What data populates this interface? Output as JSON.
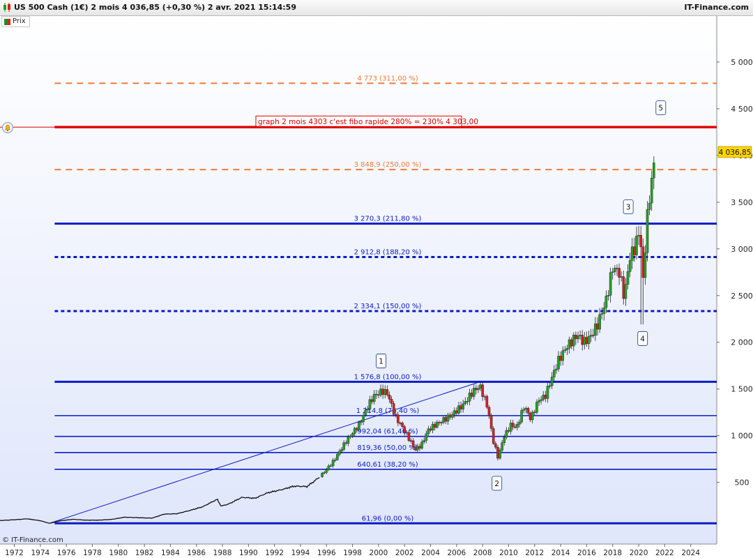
{
  "header": {
    "title": "US 500 Cash (1€) 2 mois 4 036,85 (+0,30 %) 2 avr. 2021 15:14:59",
    "brand": "IT-Finance.com"
  },
  "legend": {
    "label": "Prix"
  },
  "footer": {
    "copyright": "© IT-Finance.com"
  },
  "colors": {
    "up": "#22a022",
    "down": "#d42020",
    "fibo_blue": "#0b1cc4",
    "fibo_orange": "#f07a3a",
    "annotation_red": "#e00000",
    "bg_gradient": "#dfe6fb"
  },
  "icons": {
    "title": "candlestick-icon",
    "alert": "bell-icon"
  },
  "chart_data": {
    "type": "candlestick",
    "x_ticks": [
      "1972",
      "1974",
      "1976",
      "1978",
      "1980",
      "1982",
      "1984",
      "1986",
      "1988",
      "1990",
      "1992",
      "1994",
      "1996",
      "1998",
      "2000",
      "2002",
      "2004",
      "2006",
      "2008",
      "2010",
      "2012",
      "2014",
      "2016",
      "2018",
      "2020",
      "2022",
      "2024"
    ],
    "y_ticks": [
      "500",
      "1 000",
      "1 500",
      "2 000",
      "2 500",
      "3 000",
      "3 500",
      "4 000",
      "4 500",
      "5 000"
    ],
    "y_tick_values": [
      500,
      1000,
      1500,
      2000,
      2500,
      3000,
      3500,
      4000,
      4500,
      5000
    ],
    "xlim": [
      1970.9,
      2026.0
    ],
    "ylim": [
      -160,
      5500
    ],
    "last_price": 4036.85,
    "last_price_label": "4 036,85",
    "price_series": [
      [
        1970.9,
        92
      ],
      [
        1972.0,
        100
      ],
      [
        1973.0,
        110
      ],
      [
        1974.0,
        90
      ],
      [
        1974.7,
        62
      ],
      [
        1975.5,
        88
      ],
      [
        1976.5,
        105
      ],
      [
        1977.5,
        96
      ],
      [
        1978.5,
        96
      ],
      [
        1979.5,
        104
      ],
      [
        1980.5,
        128
      ],
      [
        1981.5,
        122
      ],
      [
        1982.6,
        118
      ],
      [
        1983.5,
        160
      ],
      [
        1984.5,
        165
      ],
      [
        1985.5,
        200
      ],
      [
        1986.5,
        240
      ],
      [
        1987.6,
        320
      ],
      [
        1987.9,
        245
      ],
      [
        1988.5,
        270
      ],
      [
        1989.5,
        340
      ],
      [
        1990.5,
        330
      ],
      [
        1991.5,
        390
      ],
      [
        1992.5,
        420
      ],
      [
        1993.5,
        460
      ],
      [
        1994.5,
        455
      ],
      [
        1995.5,
        560
      ],
      [
        1996.5,
        720
      ],
      [
        1997.5,
        940
      ],
      [
        1998.5,
        1120
      ],
      [
        1999.2,
        1320
      ],
      [
        1999.6,
        1420
      ],
      [
        2000.3,
        1480
      ],
      [
        2000.7,
        1450
      ],
      [
        2001.3,
        1200
      ],
      [
        2001.8,
        1100
      ],
      [
        2002.5,
        930
      ],
      [
        2002.8,
        850
      ],
      [
        2003.3,
        900
      ],
      [
        2003.8,
        1060
      ],
      [
        2004.5,
        1130
      ],
      [
        2005.5,
        1210
      ],
      [
        2006.5,
        1330
      ],
      [
        2007.3,
        1480
      ],
      [
        2007.8,
        1530
      ],
      [
        2008.4,
        1300
      ],
      [
        2008.8,
        950
      ],
      [
        2009.2,
        760
      ],
      [
        2009.6,
        980
      ],
      [
        2010.2,
        1120
      ],
      [
        2010.6,
        1080
      ],
      [
        2011.2,
        1320
      ],
      [
        2011.7,
        1180
      ],
      [
        2012.3,
        1380
      ],
      [
        2012.8,
        1420
      ],
      [
        2013.3,
        1610
      ],
      [
        2013.8,
        1800
      ],
      [
        2014.5,
        1960
      ],
      [
        2015.3,
        2080
      ],
      [
        2015.8,
        2000
      ],
      [
        2016.3,
        2060
      ],
      [
        2016.8,
        2180
      ],
      [
        2017.5,
        2450
      ],
      [
        2018.0,
        2800
      ],
      [
        2018.5,
        2750
      ],
      [
        2018.9,
        2480
      ],
      [
        2019.3,
        2900
      ],
      [
        2019.8,
        3050
      ],
      [
        2020.1,
        3250
      ],
      [
        2020.3,
        2580
      ],
      [
        2020.6,
        3250
      ],
      [
        2020.9,
        3650
      ],
      [
        2021.1,
        3800
      ],
      [
        2021.25,
        4036.85
      ]
    ],
    "fibonacci_levels": [
      {
        "label": "4 773 (311,00 %)",
        "value": 4773,
        "style": "dashed",
        "color": "orange"
      },
      {
        "label": "3 848,9 (250,00 %)",
        "value": 3848.9,
        "style": "dashed",
        "color": "orange"
      },
      {
        "label": "3 270,3 (211,80 %)",
        "value": 3270.3,
        "style": "solid",
        "color": "blue"
      },
      {
        "label": "2 912,8 (188,20 %)",
        "value": 2912.8,
        "style": "dotted",
        "color": "blue"
      },
      {
        "label": "2 334,1 (150,00 %)",
        "value": 2334.1,
        "style": "dotted",
        "color": "blue"
      },
      {
        "label": "1 576,8 (100,00 %)",
        "value": 1576.8,
        "style": "solid",
        "color": "blue"
      },
      {
        "label": "1 214,8 (76,40 %)",
        "value": 1214.8,
        "style": "solid",
        "color": "blue"
      },
      {
        "label": "992,04 (61,40 %)",
        "value": 992.04,
        "style": "solid",
        "color": "blue"
      },
      {
        "label": "819,36 (50,00 %)",
        "value": 819.36,
        "style": "solid",
        "color": "blue"
      },
      {
        "label": "640,61 (38,20 %)",
        "value": 640.61,
        "style": "solid",
        "color": "blue"
      },
      {
        "label": "61,96 (0,00 %)",
        "value": 61.96,
        "style": "solid",
        "color": "blue"
      }
    ],
    "annotation": {
      "text": "graph 2 mois 4303 c'est fibo rapide 280% = 230% 4 303,00",
      "value": 4303
    },
    "trendline": {
      "from": [
        1974.7,
        61.96
      ],
      "to": [
        2007.8,
        1576.8
      ]
    },
    "waves": [
      {
        "label": "1",
        "x": 2000.2,
        "y": 1800
      },
      {
        "label": "2",
        "x": 2009.1,
        "y": 490
      },
      {
        "label": "3",
        "x": 2019.2,
        "y": 3450
      },
      {
        "label": "4",
        "x": 2020.3,
        "y": 2040
      },
      {
        "label": "5",
        "x": 2021.7,
        "y": 4510
      }
    ]
  }
}
